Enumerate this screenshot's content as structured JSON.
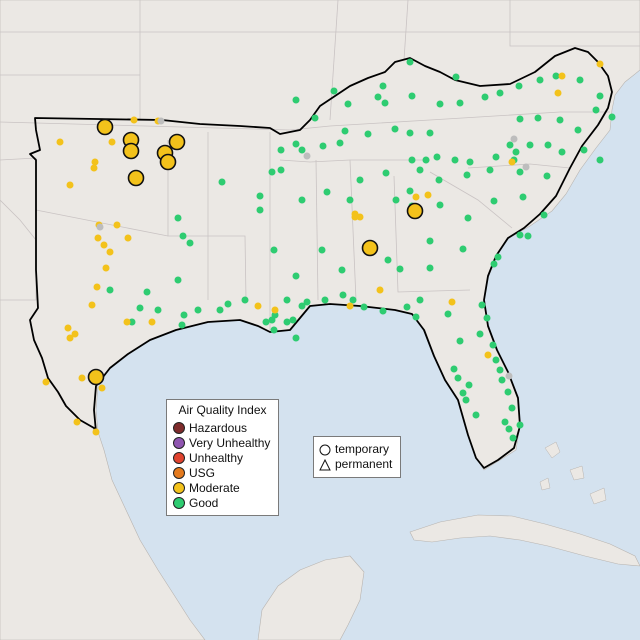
{
  "legend_aqi": {
    "title": "Air Quality Index",
    "items": [
      {
        "label": "Hazardous",
        "color": "#7e2b2b"
      },
      {
        "label": "Very Unhealthy",
        "color": "#8f55b0"
      },
      {
        "label": "Unhealthy",
        "color": "#e0432f"
      },
      {
        "label": "USG",
        "color": "#e47a1e"
      },
      {
        "label": "Moderate",
        "color": "#f3c21b"
      },
      {
        "label": "Good",
        "color": "#2ecc71"
      }
    ]
  },
  "legend_type": {
    "items": [
      {
        "label": "temporary",
        "shape": "circle"
      },
      {
        "label": "permanent",
        "shape": "triangle"
      }
    ]
  },
  "colors": {
    "water": "#d4e2ef",
    "land": "#ebe8e4",
    "state_border": "#c9c3c3",
    "region_outline": "#000000",
    "no_data": "#bdbdbd"
  },
  "monitors": {
    "good_color": "#2ecc71",
    "moderate_color": "#f3c21b",
    "nodata_color": "#bdbdbd"
  }
}
